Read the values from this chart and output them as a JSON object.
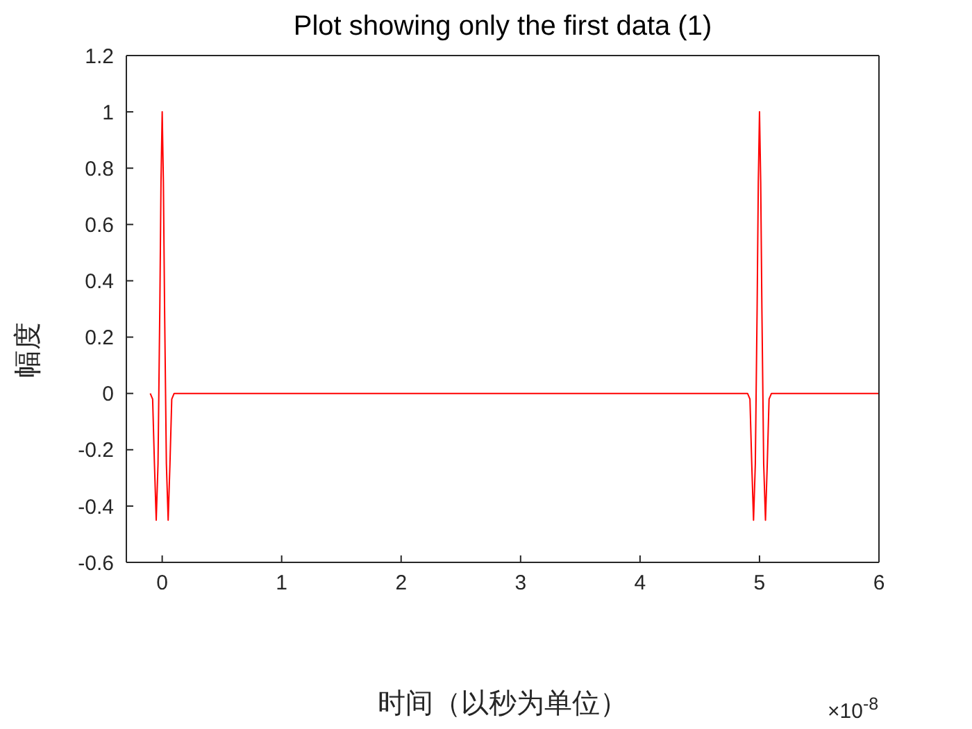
{
  "chart_data": {
    "type": "line",
    "title": "Plot showing only the first data (1)",
    "xlabel": "时间（以秒为单位）",
    "ylabel": "幅度",
    "annotations": [
      "×10$^{-8}$"
    ],
    "series": [
      {
        "color": "#ff0000",
        "x": [
          -0.1,
          -0.08,
          -0.065,
          -0.05,
          -0.035,
          -0.02,
          -0.01,
          0,
          0.01,
          0.02,
          0.035,
          0.05,
          0.065,
          0.08,
          0.1,
          4.9,
          4.92,
          4.935,
          4.95,
          4.965,
          4.98,
          4.99,
          5,
          5.01,
          5.02,
          5.035,
          5.05,
          5.065,
          5.08,
          5.1,
          6
        ],
        "values": [
          0,
          -0.02,
          -0.25,
          -0.45,
          -0.25,
          0.3,
          0.75,
          1,
          0.75,
          0.3,
          -0.25,
          -0.45,
          -0.25,
          -0.02,
          0,
          0,
          -0.02,
          -0.25,
          -0.45,
          -0.25,
          0.3,
          0.75,
          1,
          0.75,
          0.3,
          -0.25,
          -0.45,
          -0.25,
          -0.02,
          0,
          0
        ]
      }
    ],
    "xlim": [
      -0.3,
      6
    ],
    "xticks": [
      0,
      1,
      2,
      3,
      4,
      5,
      6
    ],
    "ylim": [
      -0.6,
      1.2
    ],
    "yticks": [
      -0.6,
      -0.4,
      -0.2,
      0,
      0.2,
      0.4,
      0.6,
      0.8,
      1,
      1.2
    ],
    "legend": false,
    "marker": "none",
    "line_style": "solid"
  }
}
